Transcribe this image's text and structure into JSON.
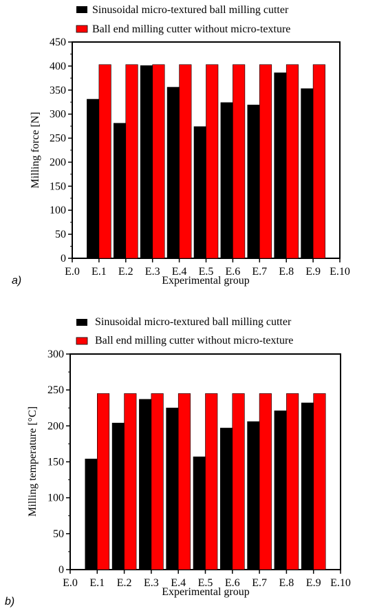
{
  "panels": [
    {
      "panel_label": "a)",
      "legend": [
        {
          "label": "Sinusoidal micro-textured ball milling cutter",
          "color": "#000000"
        },
        {
          "label": "Ball end milling cutter without micro-texture",
          "color": "#ff0000"
        }
      ]
    },
    {
      "panel_label": "b)",
      "legend": [
        {
          "label": "Sinusoidal micro-textured ball milling cutter",
          "color": "#000000"
        },
        {
          "label": "Ball end milling cutter without micro-texture",
          "color": "#ff0000"
        }
      ]
    }
  ],
  "chart_data": [
    {
      "type": "bar",
      "categories": [
        "E.0",
        "E.1",
        "E.2",
        "E.3",
        "E.4",
        "E.5",
        "E.6",
        "E.7",
        "E.8",
        "E.9",
        "E.10"
      ],
      "xlabel": "Experimental group",
      "ylabel": "Milling force [N]",
      "ylim": [
        0,
        450
      ],
      "yticks": [
        0,
        50,
        100,
        150,
        200,
        250,
        300,
        350,
        400,
        450
      ],
      "legend_position": "top",
      "series": [
        {
          "name": "Sinusoidal micro-textured ball milling cutter",
          "color": "#000000",
          "values": [
            null,
            331,
            281,
            401,
            356,
            274,
            324,
            319,
            386,
            353,
            null
          ]
        },
        {
          "name": "Ball end milling cutter without micro-texture",
          "color": "#ff0000",
          "values": [
            null,
            403,
            403,
            403,
            403,
            403,
            403,
            403,
            403,
            403,
            null
          ]
        }
      ]
    },
    {
      "type": "bar",
      "categories": [
        "E.0",
        "E.1",
        "E.2",
        "E.3",
        "E.4",
        "E.5",
        "E.6",
        "E.7",
        "E.8",
        "E.9",
        "E.10"
      ],
      "xlabel": "Experimental group",
      "ylabel": "Milling temperature [°C]",
      "ylim": [
        0,
        300
      ],
      "yticks": [
        0,
        50,
        100,
        150,
        200,
        250,
        300
      ],
      "legend_position": "top",
      "series": [
        {
          "name": "Sinusoidal micro-textured ball milling cutter",
          "color": "#000000",
          "values": [
            null,
            154,
            204,
            237,
            225,
            157,
            197,
            206,
            221,
            232,
            null
          ]
        },
        {
          "name": "Ball end milling cutter without micro-texture",
          "color": "#ff0000",
          "values": [
            null,
            245,
            245,
            245,
            245,
            245,
            245,
            245,
            245,
            245,
            null
          ]
        }
      ]
    }
  ]
}
